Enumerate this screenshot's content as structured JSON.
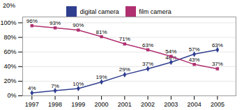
{
  "chart_data": {
    "type": "line",
    "annotations": [
      "20%"
    ],
    "x": [
      1997,
      1998,
      1999,
      2000,
      2001,
      2002,
      2003,
      2004,
      2005
    ],
    "xlim": [
      1996.6,
      2005.8
    ],
    "xticks": [
      1997,
      1998,
      1999,
      2000,
      2001,
      2002,
      2003,
      2004,
      2005
    ],
    "ylim": [
      0,
      108
    ],
    "yticks": [
      {
        "value": 0,
        "label": "0%"
      },
      {
        "value": 20,
        "label": "20%"
      },
      {
        "value": 40,
        "label": "40%"
      },
      {
        "value": 60,
        "label": "60%"
      },
      {
        "value": 80,
        "label": "80%"
      },
      {
        "value": 100,
        "label": "100%"
      }
    ],
    "grid": true,
    "legend": "top",
    "data_labels": true,
    "series": [
      {
        "name": "digital camera",
        "color": "#2F3E8F",
        "marker": "diamond",
        "values": [
          4,
          7,
          10,
          19,
          29,
          37,
          46,
          57,
          63
        ],
        "value_labels": [
          "4%",
          "7%",
          "10%",
          "19%",
          "29%",
          "37%",
          "46%",
          "57%",
          "63%"
        ]
      },
      {
        "name": "film camera",
        "color": "#B03070",
        "marker": "square",
        "values": [
          96,
          93,
          90,
          81,
          71,
          63,
          54,
          43,
          37
        ],
        "value_labels": [
          "96%",
          "93%",
          "90%",
          "81%",
          "71%",
          "63%",
          "54%",
          "43%",
          "37%"
        ]
      }
    ]
  }
}
